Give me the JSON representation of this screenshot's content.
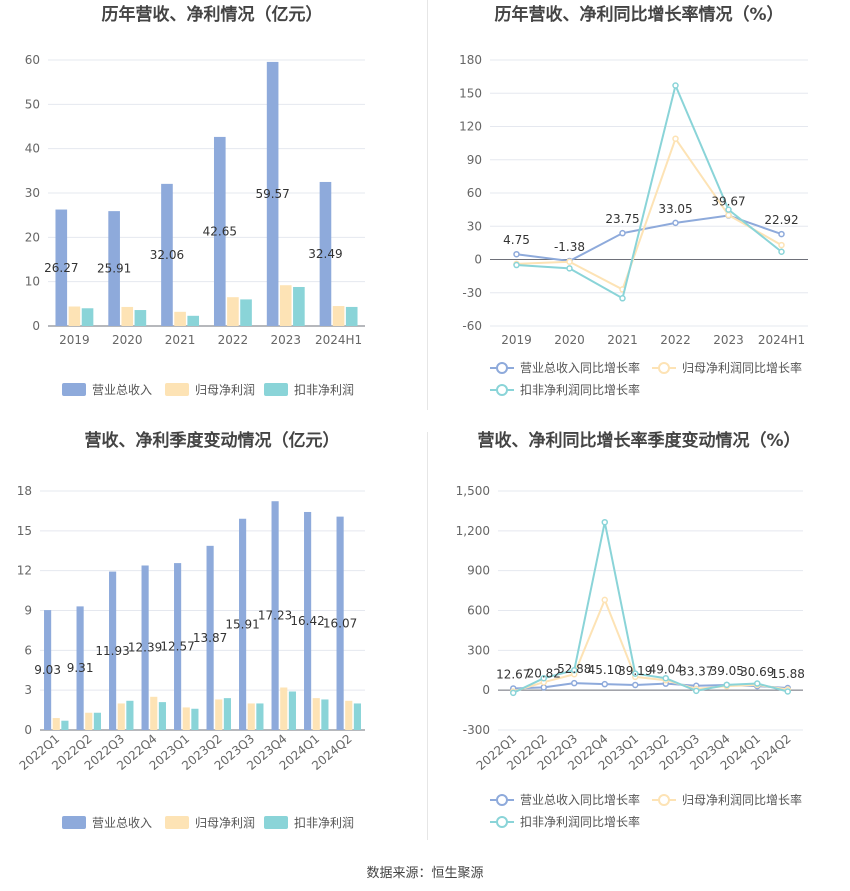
{
  "source_label": "数据来源：恒生聚源",
  "chart_data": [
    {
      "type": "bar",
      "title": "历年营收、净利情况（亿元）",
      "categories": [
        "2019",
        "2020",
        "2021",
        "2022",
        "2023",
        "2024H1"
      ],
      "ylim": [
        0,
        60
      ],
      "yticks": [
        0,
        10,
        20,
        30,
        40,
        50,
        60
      ],
      "grid": true,
      "legend_position": "bottom",
      "series": [
        {
          "name": "营业总收入",
          "color": "#8eaadb",
          "values": [
            26.27,
            25.91,
            32.06,
            42.65,
            59.57,
            32.49
          ],
          "labels": [
            "26.27",
            "25.91",
            "32.06",
            "42.65",
            "59.57",
            "32.49"
          ]
        },
        {
          "name": "归母净利润",
          "color": "#fde3b5",
          "values": [
            4.4,
            4.3,
            3.2,
            6.5,
            9.2,
            4.5
          ]
        },
        {
          "name": "扣非净利润",
          "color": "#8ad4d8",
          "values": [
            4.0,
            3.6,
            2.3,
            6.0,
            8.8,
            4.3
          ]
        }
      ]
    },
    {
      "type": "line",
      "title": "历年营收、净利同比增长率情况（%）",
      "categories": [
        "2019",
        "2020",
        "2021",
        "2022",
        "2023",
        "2024H1"
      ],
      "ylim": [
        -60,
        180
      ],
      "yticks": [
        -60,
        -30,
        0,
        30,
        60,
        90,
        120,
        150,
        180
      ],
      "grid": true,
      "legend_position": "bottom",
      "series": [
        {
          "name": "营业总收入同比增长率",
          "color": "#8eaadb",
          "values": [
            4.75,
            -1.38,
            23.75,
            33.05,
            39.67,
            22.92
          ],
          "labels": [
            "4.75",
            "-1.38",
            "23.75",
            "33.05",
            "39.67",
            "22.92"
          ]
        },
        {
          "name": "归母净利润同比增长率",
          "color": "#fde3b5",
          "values": [
            -4,
            -2,
            -27,
            109,
            40,
            13
          ]
        },
        {
          "name": "扣非净利润同比增长率",
          "color": "#8ad4d8",
          "values": [
            -5,
            -8,
            -35,
            157,
            45,
            7
          ]
        }
      ]
    },
    {
      "type": "bar",
      "title": "营收、净利季度变动情况（亿元）",
      "categories": [
        "2022Q1",
        "2022Q2",
        "2022Q3",
        "2022Q4",
        "2023Q1",
        "2023Q2",
        "2023Q3",
        "2023Q4",
        "2024Q1",
        "2024Q2"
      ],
      "ylim": [
        0,
        18
      ],
      "yticks": [
        0,
        3,
        6,
        9,
        12,
        15,
        18
      ],
      "grid": true,
      "legend_position": "bottom",
      "series": [
        {
          "name": "营业总收入",
          "color": "#8eaadb",
          "values": [
            9.03,
            9.31,
            11.93,
            12.39,
            12.57,
            13.87,
            15.91,
            17.23,
            16.42,
            16.07
          ],
          "labels": [
            "9.03",
            "9.31",
            "11.93",
            "12.39",
            "12.57",
            "13.87",
            "15.91",
            "17.23",
            "16.42",
            "16.07"
          ]
        },
        {
          "name": "归母净利润",
          "color": "#fde3b5",
          "values": [
            0.9,
            1.3,
            2.0,
            2.5,
            1.7,
            2.3,
            2.0,
            3.2,
            2.4,
            2.2
          ]
        },
        {
          "name": "扣非净利润",
          "color": "#8ad4d8",
          "values": [
            0.7,
            1.3,
            2.2,
            2.1,
            1.6,
            2.4,
            2.0,
            2.9,
            2.3,
            2.0
          ]
        }
      ]
    },
    {
      "type": "line",
      "title": "营收、净利同比增长率季度变动情况（%）",
      "categories": [
        "2022Q1",
        "2022Q2",
        "2022Q3",
        "2022Q4",
        "2023Q1",
        "2023Q2",
        "2023Q3",
        "2023Q4",
        "2024Q1",
        "2024Q2"
      ],
      "ylim": [
        -300,
        1500
      ],
      "yticks": [
        -300,
        0,
        300,
        600,
        900,
        1200,
        1500
      ],
      "ytick_labels": [
        "-300",
        "0",
        "300",
        "600",
        "900",
        "1,200",
        "1,500"
      ],
      "grid": true,
      "legend_position": "bottom",
      "series": [
        {
          "name": "营业总收入同比增长率",
          "color": "#8eaadb",
          "values": [
            12.67,
            20.82,
            52.88,
            45.1,
            39.19,
            49.04,
            33.37,
            39.05,
            30.69,
            15.88
          ],
          "labels": [
            "12.67",
            "20.82",
            "52.88",
            "45.10",
            "39.19",
            "49.04",
            "33.37",
            "39.05",
            "30.69",
            "15.88"
          ]
        },
        {
          "name": "归母净利润同比增长率",
          "color": "#fde3b5",
          "values": [
            -10,
            60,
            120,
            680,
            100,
            75,
            10,
            30,
            40,
            5
          ]
        },
        {
          "name": "扣非净利润同比增长率",
          "color": "#8ad4d8",
          "values": [
            -20,
            90,
            150,
            1265,
            125,
            90,
            -5,
            40,
            50,
            -10
          ]
        }
      ]
    }
  ]
}
